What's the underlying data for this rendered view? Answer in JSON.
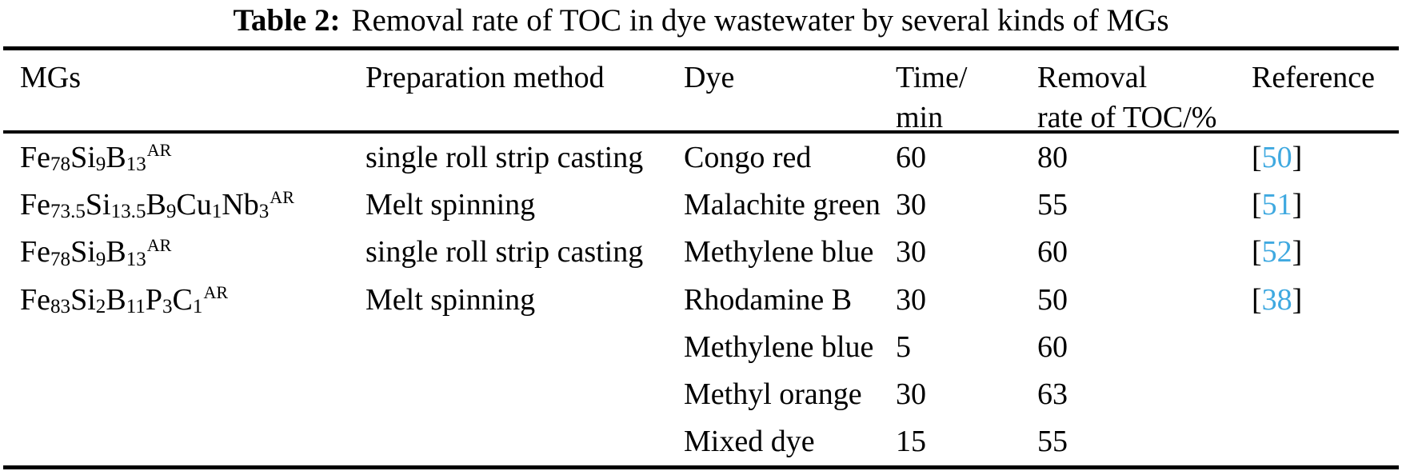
{
  "caption": {
    "label": "Table 2:",
    "text": "Removal rate of TOC in dye wastewater by several kinds of MGs"
  },
  "table": {
    "headers": [
      {
        "line1": "MGs",
        "line2": ""
      },
      {
        "line1": "Preparation method",
        "line2": ""
      },
      {
        "line1": "Dye",
        "line2": ""
      },
      {
        "line1": "Time/",
        "line2": "min"
      },
      {
        "line1": "Removal",
        "line2": "rate of TOC/%"
      },
      {
        "line1": "Reference",
        "line2": ""
      }
    ],
    "reference_bracket_open": "[",
    "reference_bracket_close": "]",
    "rows": [
      {
        "mg": [
          {
            "t": "Fe"
          },
          {
            "sub": "78"
          },
          {
            "t": "Si"
          },
          {
            "sub": "9"
          },
          {
            "t": "B"
          },
          {
            "sub": "13"
          },
          {
            "sup": "AR"
          }
        ],
        "method": "single roll strip casting",
        "dye": "Congo red",
        "time_min": "60",
        "removal_rate_toc_pct": "80",
        "reference": "50"
      },
      {
        "mg": [
          {
            "t": "Fe"
          },
          {
            "sub": "73.5"
          },
          {
            "t": "Si"
          },
          {
            "sub": "13.5"
          },
          {
            "t": "B"
          },
          {
            "sub": "9"
          },
          {
            "t": "Cu"
          },
          {
            "sub": "1"
          },
          {
            "t": "Nb"
          },
          {
            "sub": "3"
          },
          {
            "sup": "AR"
          }
        ],
        "method": "Melt spinning",
        "dye": "Malachite green",
        "time_min": "30",
        "removal_rate_toc_pct": "55",
        "reference": "51"
      },
      {
        "mg": [
          {
            "t": "Fe"
          },
          {
            "sub": "78"
          },
          {
            "t": "Si"
          },
          {
            "sub": "9"
          },
          {
            "t": "B"
          },
          {
            "sub": "13"
          },
          {
            "sup": "AR"
          }
        ],
        "method": "single roll strip casting",
        "dye": "Methylene blue",
        "time_min": "30",
        "removal_rate_toc_pct": "60",
        "reference": "52"
      },
      {
        "mg": [
          {
            "t": "Fe"
          },
          {
            "sub": "83"
          },
          {
            "t": "Si"
          },
          {
            "sub": "2"
          },
          {
            "t": "B"
          },
          {
            "sub": "11"
          },
          {
            "t": "P"
          },
          {
            "sub": "3"
          },
          {
            "t": "C"
          },
          {
            "sub": "1"
          },
          {
            "sup": "AR"
          }
        ],
        "method": "Melt spinning",
        "dye": "Rhodamine B",
        "time_min": "30",
        "removal_rate_toc_pct": "50",
        "reference": "38"
      },
      {
        "mg": [],
        "method": "",
        "dye": "Methylene blue",
        "time_min": "5",
        "removal_rate_toc_pct": "60",
        "reference": ""
      },
      {
        "mg": [],
        "method": "",
        "dye": "Methyl orange",
        "time_min": "30",
        "removal_rate_toc_pct": "63",
        "reference": ""
      },
      {
        "mg": [],
        "method": "",
        "dye": "Mixed dye",
        "time_min": "15",
        "removal_rate_toc_pct": "55",
        "reference": ""
      }
    ]
  },
  "colors": {
    "text": "#000000",
    "background": "#ffffff",
    "rule": "#000000",
    "reference_link": "#3fa9e0"
  }
}
